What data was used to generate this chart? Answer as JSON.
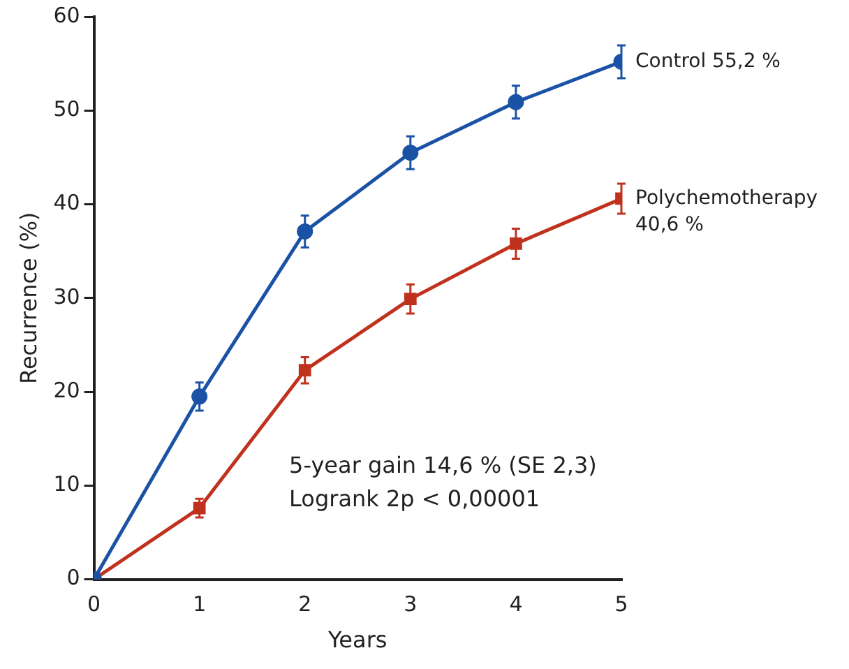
{
  "chart_data": {
    "type": "line",
    "xlabel": "Years",
    "ylabel": "Recurrence (%)",
    "x": [
      0,
      1,
      2,
      3,
      4,
      5
    ],
    "xlim": [
      0,
      5
    ],
    "xticks": [
      0,
      1,
      2,
      3,
      4,
      5
    ],
    "ylim": [
      0,
      60
    ],
    "yticks": [
      0,
      10,
      20,
      30,
      40,
      50,
      60
    ],
    "grid": false,
    "legend": false,
    "line_style": "solid",
    "series": [
      {
        "name": "Control",
        "color": "#1a52a6",
        "marker": "circle",
        "values": [
          0,
          19.5,
          37.1,
          45.5,
          50.9,
          55.2
        ],
        "errors": [
          null,
          1.5,
          1.7,
          1.75,
          1.75,
          1.75
        ],
        "value_labels": [
          null,
          null,
          null,
          null,
          null,
          "55,2 %"
        ]
      },
      {
        "name": "Polychemotherapy",
        "color": "#c0321e",
        "marker": "square",
        "values": [
          0,
          7.6,
          22.3,
          29.9,
          35.8,
          40.6
        ],
        "errors": [
          null,
          1,
          1.4,
          1.55,
          1.6,
          1.6
        ],
        "value_labels": [
          null,
          null,
          null,
          null,
          null,
          "40,6 %"
        ]
      }
    ],
    "annotations": [
      "5-year gain 14,6 % (SE 2,3)",
      "Logrank 2p < 0,00001"
    ]
  }
}
